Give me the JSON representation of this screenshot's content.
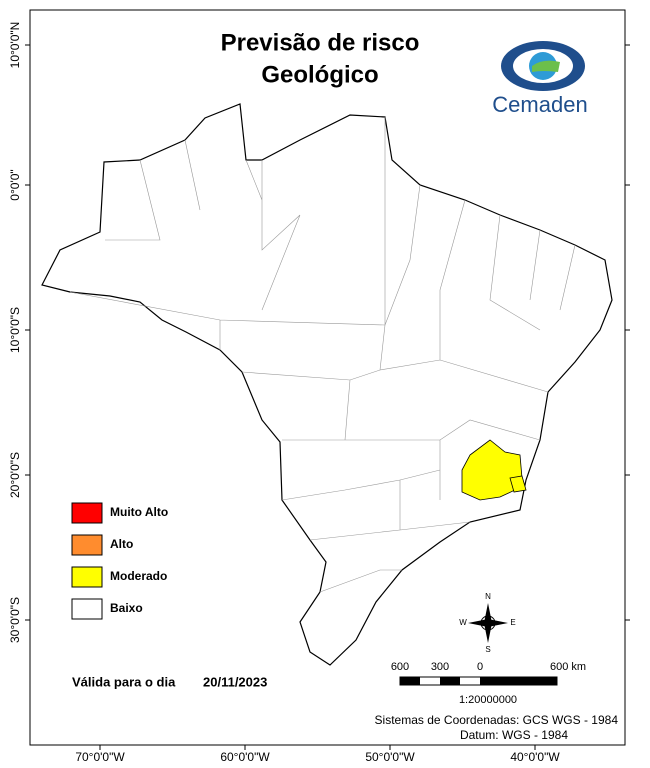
{
  "title": [
    "Previsão de risco",
    "Geológico"
  ],
  "logo": "Cemaden",
  "legend": [
    {
      "label": "Muito Alto",
      "color": "#ff0000"
    },
    {
      "label": "Alto",
      "color": "#ff8c2e"
    },
    {
      "label": "Moderado",
      "color": "#ffff00"
    },
    {
      "label": "Baixo",
      "color": "#ffffff"
    }
  ],
  "validity": {
    "label": "Válida para o dia",
    "date": "20/11/2023"
  },
  "scale_bar": {
    "labels": [
      "600",
      "300",
      "0",
      "600 km"
    ],
    "ratio": "1:20000000"
  },
  "compass": {
    "north": "N",
    "south": "S",
    "east": "E",
    "west": "W"
  },
  "footer": [
    "Sistemas de Coordenadas: GCS WGS - 1984",
    "Datum: WGS - 1984"
  ],
  "latitude_labels": [
    "10°0'0\"N",
    "0°0'0\"",
    "10°0'0\"S",
    "20°0'0\"S",
    "30°0'0\"S"
  ],
  "longitude_labels": [
    "70°0'0\"W",
    "60°0'0\"W",
    "50°0'0\"W",
    "40°0'0\"W"
  ]
}
